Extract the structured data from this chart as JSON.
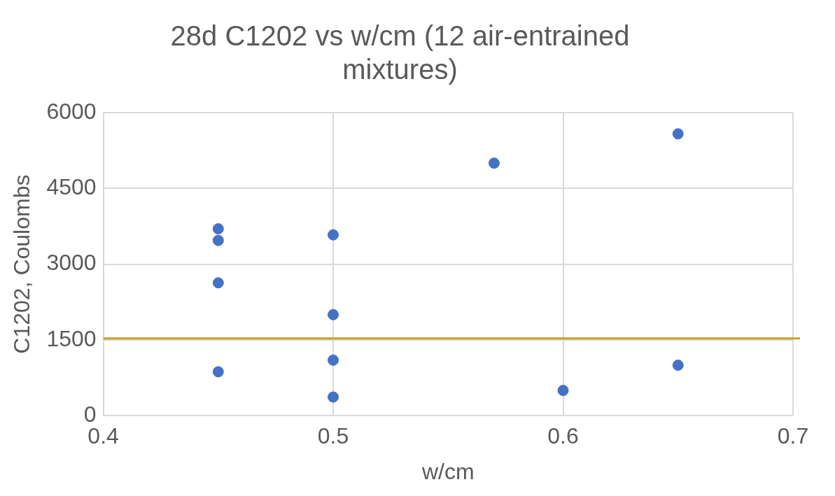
{
  "chart_data": {
    "type": "scatter",
    "title": "28d C1202 vs w/cm (12 air-entrained mixtures)",
    "xlabel": "w/cm",
    "ylabel": "C1202, Coulombs",
    "x": [
      0.45,
      0.45,
      0.45,
      0.45,
      0.5,
      0.5,
      0.5,
      0.5,
      0.57,
      0.6,
      0.65,
      0.65
    ],
    "values": [
      3700,
      3470,
      2630,
      870,
      3580,
      2000,
      1100,
      370,
      5000,
      500,
      5580,
      1000
    ],
    "color": "#4472c4",
    "marker": "circle",
    "xlim": [
      0.4,
      0.7
    ],
    "xticks": [
      0.4,
      0.5,
      0.6,
      0.7
    ],
    "ylim": [
      0,
      6000
    ],
    "yticks": [
      0,
      1500,
      3000,
      4500,
      6000
    ],
    "grid": true,
    "legend": false,
    "ref_lines": [
      {
        "axis": "y",
        "value": 1530,
        "label": null,
        "color": "#c9a227",
        "line_style": "solid"
      }
    ]
  }
}
